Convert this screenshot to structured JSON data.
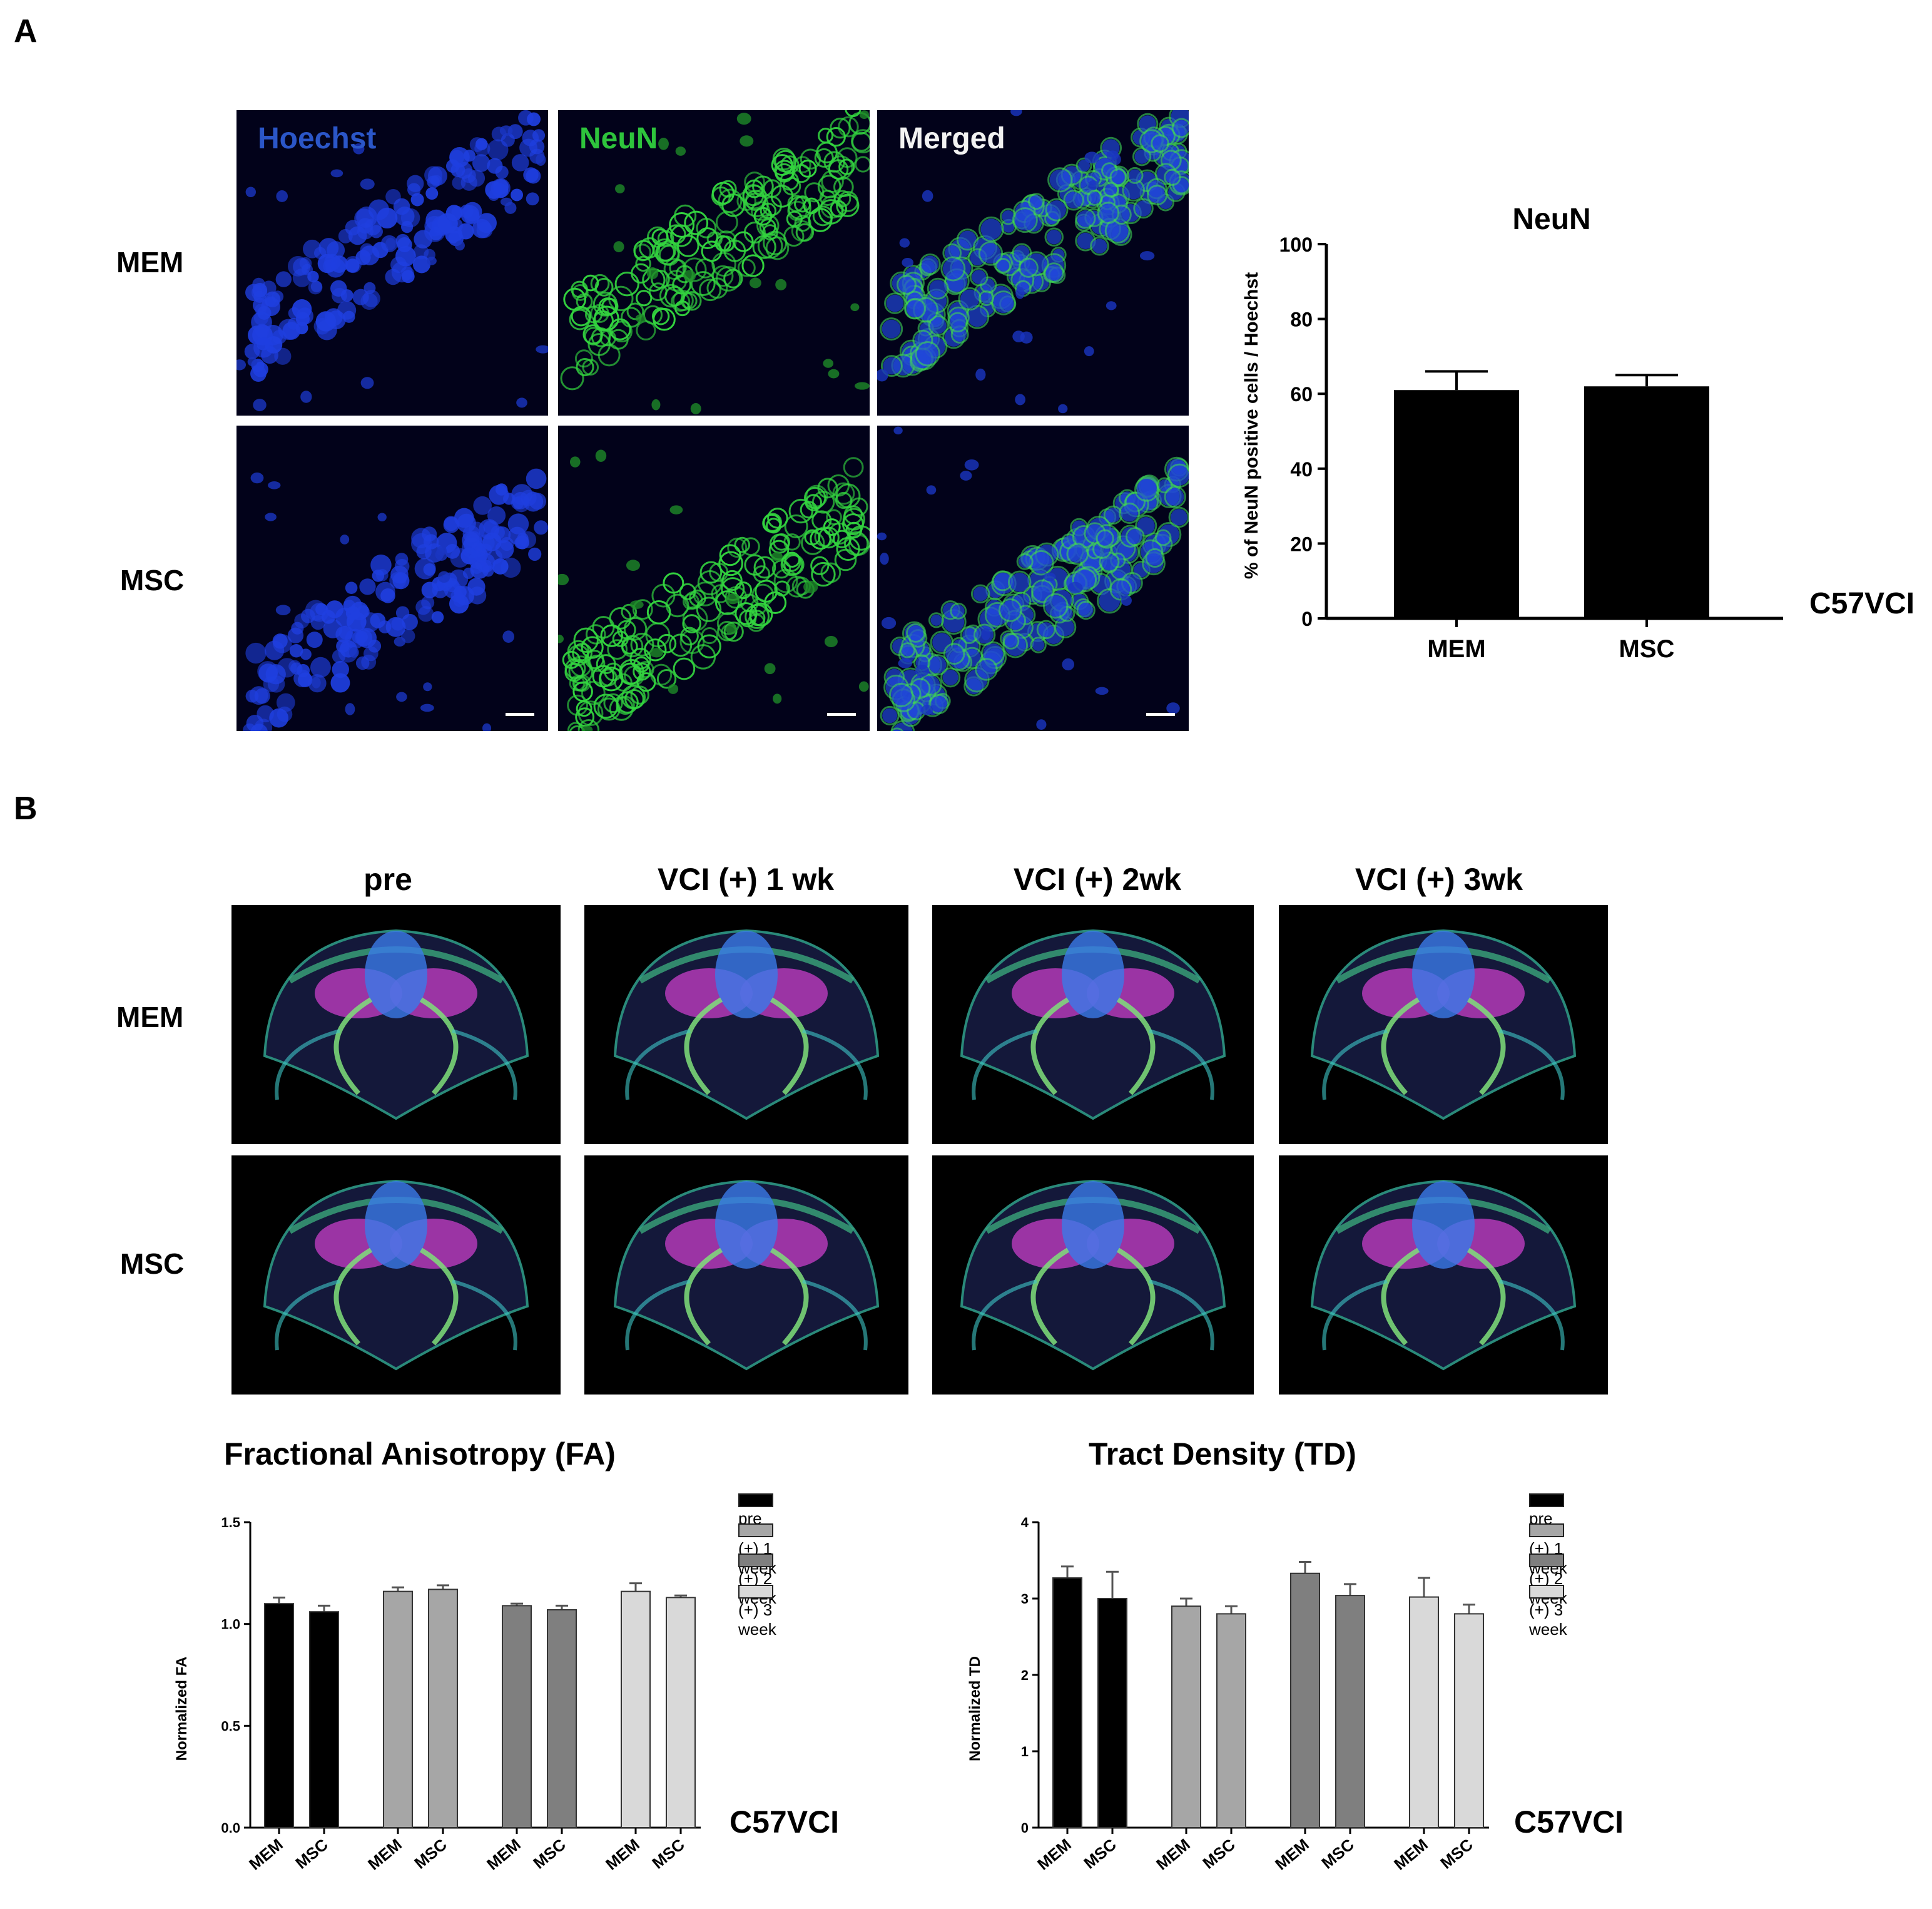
{
  "panel_a": {
    "letter": "A",
    "rows": [
      "MEM",
      "MSC"
    ],
    "channels": [
      {
        "label": "Hoechst",
        "color": "#2b56c8"
      },
      {
        "label": "NeuN",
        "color": "#2ec43c"
      },
      {
        "label": "Merged",
        "color": "#f2f2f2"
      }
    ],
    "strain_label": "C57VCI"
  },
  "panel_b": {
    "letter": "B",
    "timepoints": [
      "pre",
      "VCI (+) 1 wk",
      "VCI (+) 2wk",
      "VCI (+) 3wk"
    ],
    "rows": [
      "MEM",
      "MSC"
    ],
    "strain_label_fa": "C57VCI",
    "strain_label_td": "C57VCI",
    "legend": [
      "pre",
      "(+) 1 week",
      "(+) 2 week",
      "(+) 3 week"
    ],
    "group_colors": [
      "#000000",
      "#a6a6a6",
      "#7f7f7f",
      "#d9d9d9"
    ]
  },
  "chart_data": [
    {
      "type": "bar",
      "title": "NeuN",
      "xlabel": "",
      "ylabel": "% of NeuN positive cells / Hoechst",
      "categories": [
        "MEM",
        "MSC"
      ],
      "values": [
        61,
        62
      ],
      "errors": [
        5,
        3
      ],
      "ylim": [
        0,
        100
      ],
      "yticks": [
        "0",
        "20",
        "40",
        "60",
        "80",
        "100"
      ],
      "colors": [
        "#000000",
        "#000000"
      ]
    },
    {
      "type": "bar",
      "title": "Fractional Anisotropy (FA)",
      "xlabel": "",
      "ylabel": "Normalized FA",
      "categories": [
        "MEM",
        "MSC",
        "MEM",
        "MSC",
        "MEM",
        "MSC",
        "MEM",
        "MSC"
      ],
      "groups": [
        "pre",
        "(+) 1 week",
        "(+) 2 week",
        "(+) 3 week"
      ],
      "values": [
        1.1,
        1.06,
        1.16,
        1.17,
        1.09,
        1.07,
        1.16,
        1.13
      ],
      "errors": [
        0.03,
        0.03,
        0.02,
        0.02,
        0.01,
        0.02,
        0.04,
        0.01
      ],
      "ylim": [
        0,
        1.5
      ],
      "yticks": [
        "0.0",
        "0.5",
        "1.0",
        "1.5"
      ]
    },
    {
      "type": "bar",
      "title": "Tract Density (TD)",
      "xlabel": "",
      "ylabel": "Normalized TD",
      "categories": [
        "MEM",
        "MSC",
        "MEM",
        "MSC",
        "MEM",
        "MSC",
        "MEM",
        "MSC"
      ],
      "groups": [
        "pre",
        "(+) 1 week",
        "(+) 2 week",
        "(+) 3 week"
      ],
      "values": [
        3.27,
        3.0,
        2.9,
        2.8,
        3.33,
        3.04,
        3.02,
        2.8
      ],
      "errors": [
        0.15,
        0.35,
        0.1,
        0.1,
        0.15,
        0.15,
        0.25,
        0.12
      ],
      "ylim": [
        0,
        4
      ],
      "yticks": [
        "0",
        "1",
        "2",
        "3",
        "4"
      ]
    }
  ]
}
